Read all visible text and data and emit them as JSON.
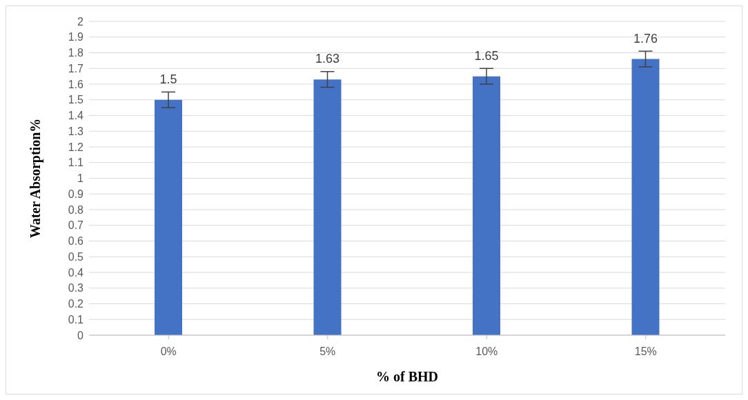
{
  "chart_data": {
    "type": "bar",
    "xlabel": "% of BHD",
    "ylabel": "Water Absorption%",
    "categories": [
      "0%",
      "5%",
      "10%",
      "15%"
    ],
    "values": [
      1.5,
      1.63,
      1.65,
      1.76
    ],
    "errors": [
      0.05,
      0.05,
      0.05,
      0.05
    ],
    "color": "#4472c4",
    "ylim": [
      0,
      2
    ],
    "yticks": [
      0,
      0.1,
      0.2,
      0.3,
      0.4,
      0.5,
      0.6,
      0.7,
      0.8,
      0.9,
      1,
      1.1,
      1.2,
      1.3,
      1.4,
      1.5,
      1.6,
      1.7,
      1.8,
      1.9,
      2
    ],
    "grid": "y",
    "data_labels": true
  }
}
